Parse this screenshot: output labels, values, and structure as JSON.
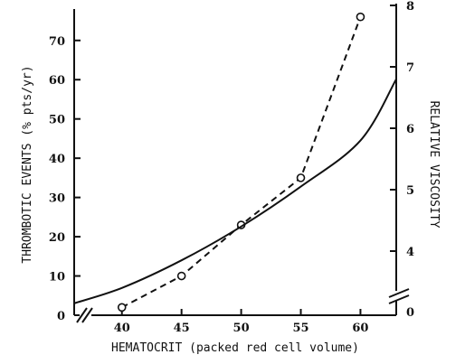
{
  "chart_data": {
    "type": "line",
    "title": "",
    "xlabel": "HEMATOCRIT (packed red cell volume)",
    "ylabel_left": "THROMBOTIC EVENTS (% pts/yr)",
    "ylabel_right": "RELATIVE VISCOSITY",
    "xlim": [
      36,
      63
    ],
    "ylim_left": [
      0,
      78
    ],
    "ylim_right": [
      0,
      8
    ],
    "x_ticks": [
      40,
      45,
      50,
      55,
      60
    ],
    "y_left_ticks": [
      0,
      10,
      20,
      30,
      40,
      50,
      60,
      70
    ],
    "y_right_ticks": [
      0,
      4,
      5,
      6,
      7,
      8
    ],
    "axis_breaks": {
      "x": true,
      "y_right": true
    },
    "grid": false,
    "legend": "none",
    "series": [
      {
        "axis": "left",
        "style": "dashed-with-open-circles",
        "x": [
          40,
          45,
          50,
          55,
          60
        ],
        "y": [
          2,
          10,
          23,
          35,
          76
        ]
      },
      {
        "axis": "right",
        "style": "solid",
        "x": [
          36,
          40,
          45,
          50,
          55,
          60,
          63
        ],
        "y": [
          3.15,
          3.4,
          3.85,
          4.4,
          5.05,
          5.8,
          6.8
        ]
      }
    ]
  }
}
